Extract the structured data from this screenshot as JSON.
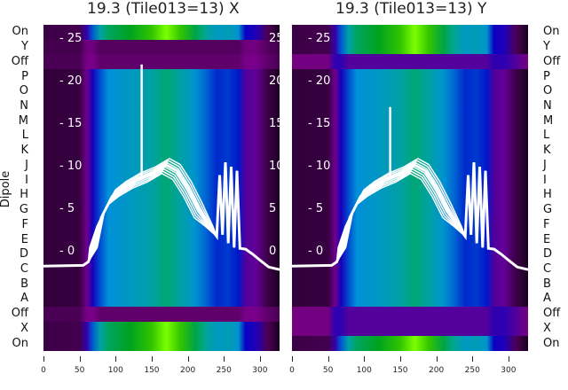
{
  "chart_data": [
    {
      "type": "heatmap",
      "title": "19.3 (Tile013=13) X",
      "ylabel": "Dipole",
      "row_labels": [
        "On",
        "Y",
        "Off",
        "P",
        "O",
        "N",
        "M",
        "L",
        "K",
        "J",
        "I",
        "H",
        "G",
        "F",
        "E",
        "D",
        "C",
        "B",
        "A",
        "Off",
        "X",
        "On"
      ],
      "row_levels": [
        1.45,
        0.1,
        0.12,
        1,
        1,
        1,
        1,
        1,
        1,
        1,
        1,
        1,
        1,
        1,
        1,
        1,
        1,
        1,
        1,
        0.12,
        1.45,
        1.45
      ],
      "x_ticks": [
        "0",
        "50",
        "100",
        "150",
        "200",
        "250",
        "300"
      ],
      "xlim": [
        0,
        327
      ],
      "inner_y_ticks": [
        "- 25",
        "- 20",
        "- 15",
        "- 10",
        "- 5",
        "- 0"
      ],
      "inner_y_values": [
        25,
        20,
        15,
        10,
        5,
        0
      ],
      "twin_y_ticks": [
        "25",
        "20",
        "15",
        "10",
        "5",
        "0"
      ],
      "ylim_line": [
        -3,
        26.5
      ],
      "spike": {
        "x": 136,
        "y": 22
      },
      "line_color": "#ffffff"
    },
    {
      "type": "heatmap",
      "title": "19.3 (Tile013=13) Y",
      "row_labels": [
        "On",
        "Y",
        "Off",
        "P",
        "O",
        "N",
        "M",
        "L",
        "K",
        "J",
        "I",
        "H",
        "G",
        "F",
        "E",
        "D",
        "C",
        "B",
        "A",
        "Off",
        "X",
        "On"
      ],
      "row_levels": [
        1.45,
        1.45,
        0.22,
        1,
        1,
        1,
        1,
        1,
        1,
        1,
        1,
        1,
        1,
        1,
        1,
        1,
        1,
        1,
        1,
        0.22,
        0.22,
        1.45
      ],
      "x_ticks": [
        "0",
        "50",
        "100",
        "150",
        "200",
        "250",
        "300"
      ],
      "xlim": [
        0,
        327
      ],
      "inner_y_ticks": [
        "- 25",
        "- 20",
        "- 15",
        "- 10",
        "- 5",
        "- 0"
      ],
      "inner_y_values": [
        25,
        20,
        15,
        10,
        5,
        0
      ],
      "ylim_line": [
        -3,
        26.5
      ],
      "spike": {
        "x": 136,
        "y": 17
      },
      "line_color": "#ffffff"
    }
  ],
  "column_profile": {
    "x": [
      0,
      50,
      60,
      68,
      78,
      90,
      120,
      150,
      170,
      190,
      210,
      225,
      240,
      255,
      270,
      280,
      295,
      310,
      327
    ],
    "v": [
      0.04,
      0.05,
      0.18,
      0.3,
      0.42,
      0.5,
      0.55,
      0.62,
      0.7,
      0.62,
      0.52,
      0.45,
      0.38,
      0.4,
      0.36,
      0.22,
      0.2,
      0.06,
      0.0
    ]
  },
  "line_profile": {
    "x": [
      0,
      55,
      62,
      70,
      80,
      95,
      110,
      130,
      150,
      170,
      185,
      200,
      215,
      230,
      240,
      244,
      248,
      252,
      256,
      260,
      264,
      268,
      272,
      280,
      290,
      300,
      312,
      327
    ],
    "y": [
      -1.7,
      -1.6,
      -1.2,
      0.5,
      4,
      6.5,
      7.5,
      8.5,
      9.2,
      10.2,
      9.5,
      7.5,
      5,
      3,
      1.8,
      9,
      2,
      10.5,
      1,
      10,
      0.5,
      9.5,
      0.4,
      0.3,
      -0.3,
      -1,
      -1.8,
      -2.1
    ]
  },
  "colormap": [
    "#1a0022",
    "#7a0088",
    "#0000c8",
    "#0090d8",
    "#00a890",
    "#00a000",
    "#7cff00"
  ]
}
